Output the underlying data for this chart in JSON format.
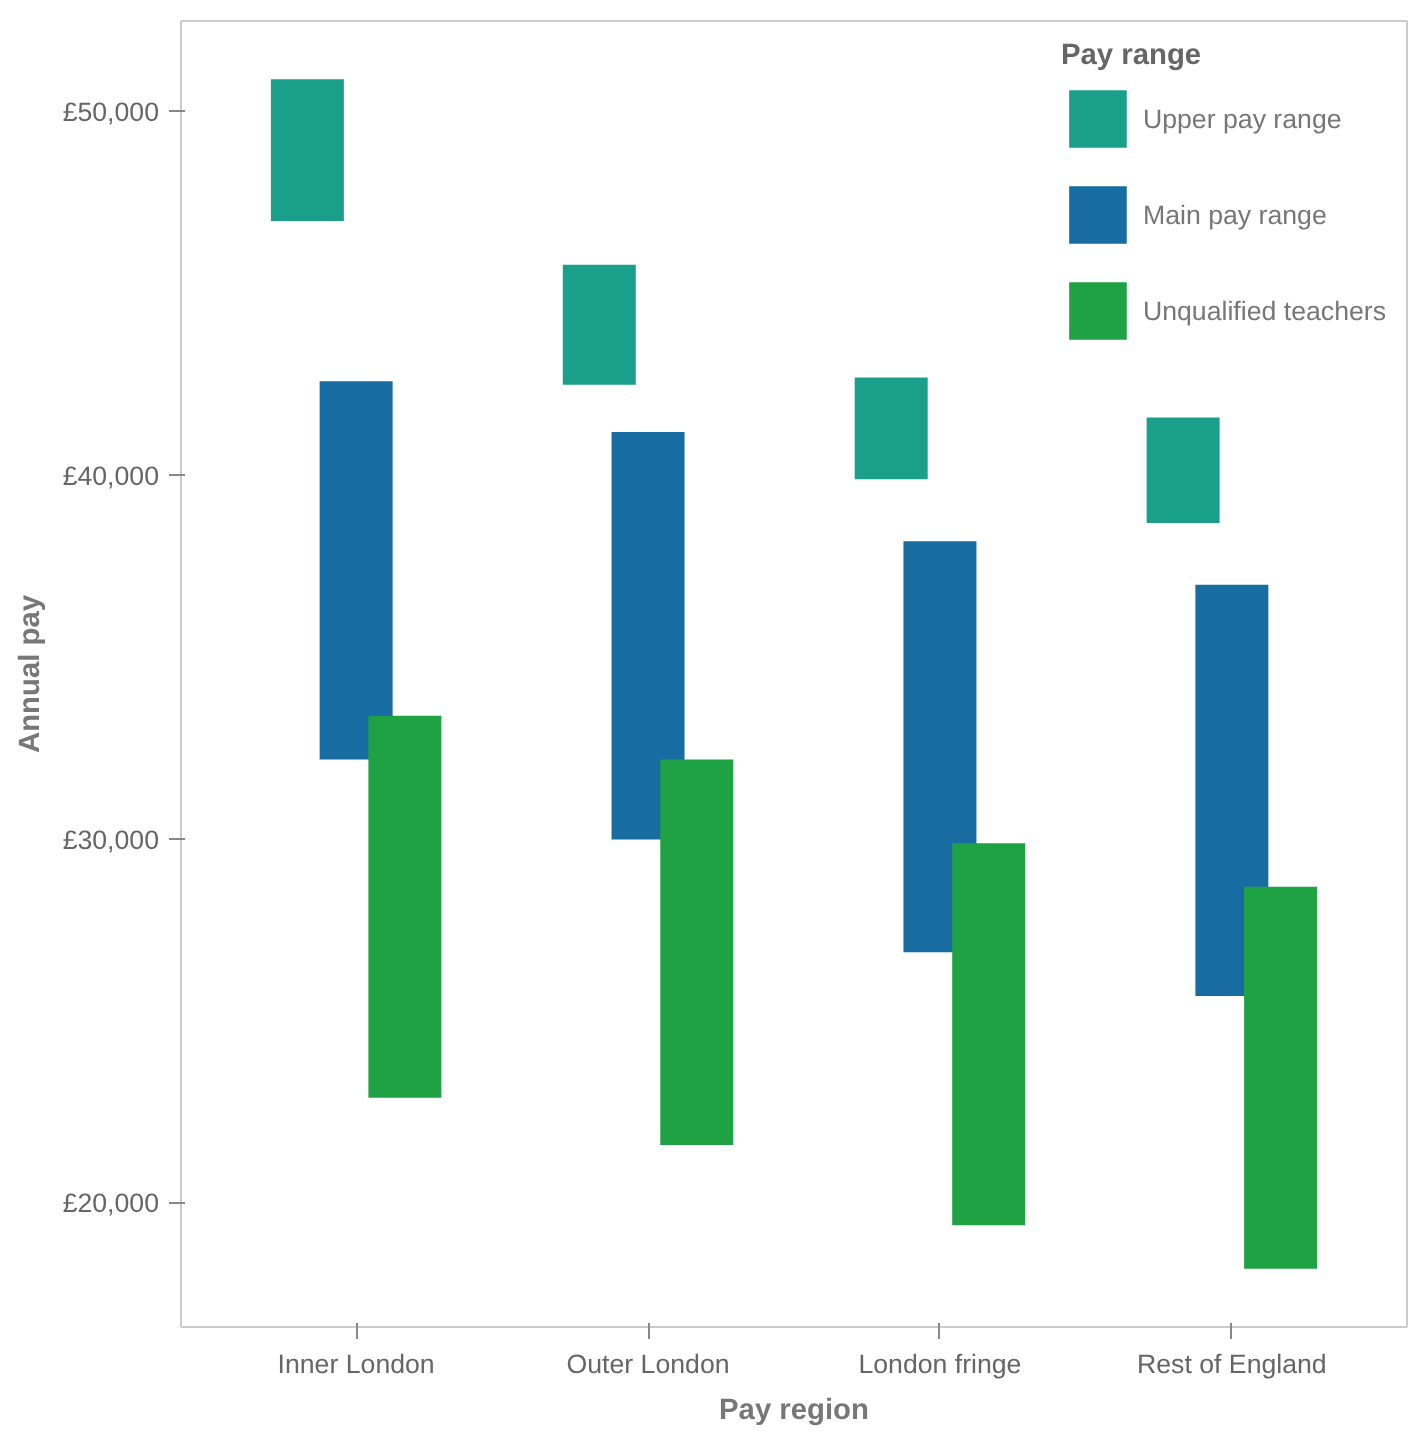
{
  "chart_data": {
    "type": "bar",
    "xlabel": "Pay region",
    "ylabel": "Annual pay",
    "legend_title": "Pay range",
    "categories": [
      "Inner London",
      "Outer London",
      "London fringe",
      "Rest of England"
    ],
    "series": [
      {
        "name": "Upper pay range",
        "color": "#1aa08a",
        "base": [
          47000,
          42500,
          39900,
          38700
        ],
        "values": [
          3900,
          3300,
          2800,
          2900
        ]
      },
      {
        "name": "Main pay range",
        "color": "#176ca1",
        "base": [
          32200,
          30000,
          26900,
          25700
        ],
        "values": [
          10400,
          11200,
          11300,
          11300
        ]
      },
      {
        "name": "Unqualified teachers",
        "color": "#1fa243",
        "base": [
          22900,
          21600,
          19400,
          18200
        ],
        "values": [
          10500,
          10600,
          10500,
          10500
        ]
      }
    ],
    "ylim": [
      16600,
      52500
    ],
    "yticks": [
      {
        "value": 20000,
        "label": "£20,000"
      },
      {
        "value": 30000,
        "label": "£30,000"
      },
      {
        "value": 40000,
        "label": "£40,000"
      },
      {
        "value": 50000,
        "label": "£50,000"
      }
    ],
    "grid": false,
    "legend": "top right"
  }
}
